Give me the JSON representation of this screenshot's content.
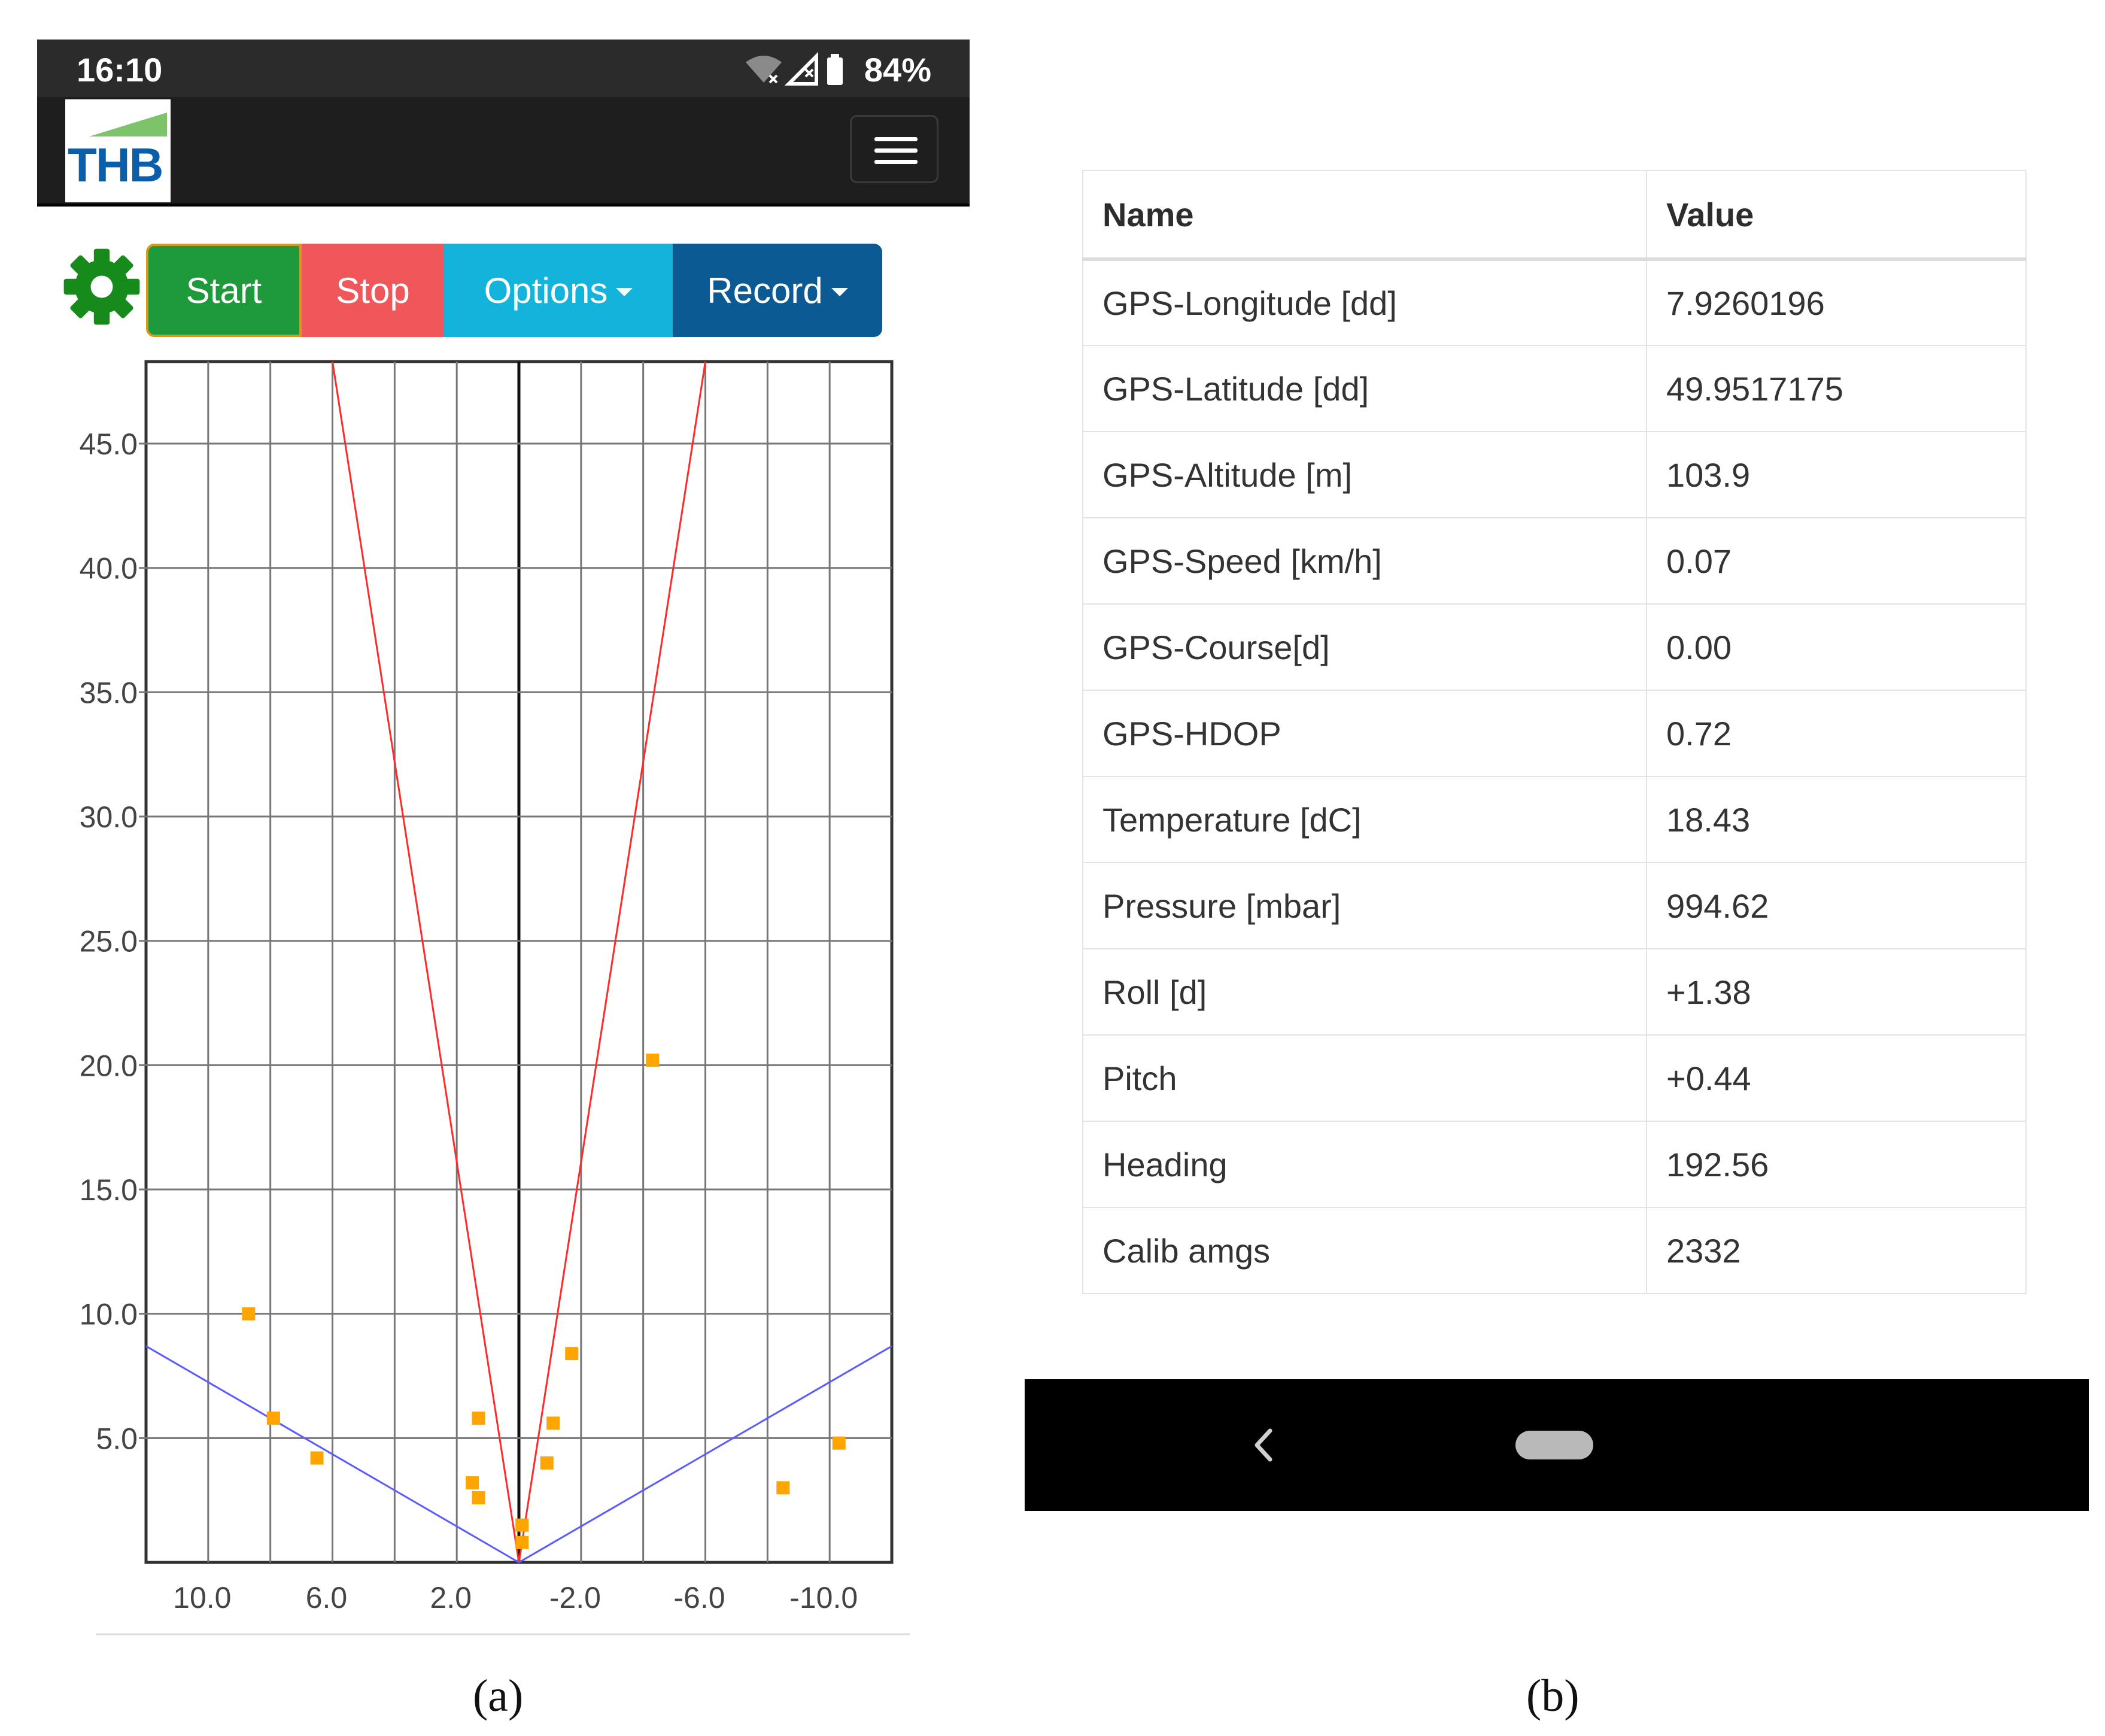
{
  "status_bar": {
    "time": "16:10",
    "battery": "84%",
    "icons": [
      "wifi-off-icon",
      "signal-off-icon",
      "battery-icon"
    ]
  },
  "app": {
    "logo_text": "THB",
    "toolbar": {
      "start": "Start",
      "stop": "Stop",
      "options": "Options",
      "record": "Record"
    }
  },
  "colors": {
    "start": "#1e9a3c",
    "stop": "#f0575a",
    "options": "#13b3dc",
    "record": "#0c5a93",
    "gear": "#178a1c",
    "sector_lines": "#ff2a2a",
    "floor_lines": "#5b5bff",
    "points": "#ffa500"
  },
  "chart_data": {
    "type": "scatter",
    "x_axis": {
      "ticks": [
        "10.0",
        "6.0",
        "2.0",
        "-2.0",
        "-6.0",
        "-10.0"
      ],
      "range": [
        12.0,
        -12.0
      ],
      "reversed": true
    },
    "y_axis": {
      "ticks": [
        "5.0",
        "10.0",
        "15.0",
        "20.0",
        "25.0",
        "30.0",
        "35.0",
        "40.0",
        "45.0"
      ],
      "range": [
        0,
        48.3
      ]
    },
    "grid": true,
    "sector_lines": [
      {
        "from": [
          0,
          0
        ],
        "to": [
          6.0,
          48.3
        ]
      },
      {
        "from": [
          0,
          0
        ],
        "to": [
          -6.0,
          48.3
        ]
      }
    ],
    "floor_lines": [
      {
        "from": [
          0,
          0
        ],
        "to": [
          12.0,
          8.7
        ]
      },
      {
        "from": [
          0,
          0
        ],
        "to": [
          -12.0,
          8.7
        ]
      }
    ],
    "points": [
      {
        "x": 8.7,
        "y": 10.0
      },
      {
        "x": 7.9,
        "y": 5.8
      },
      {
        "x": 6.5,
        "y": 4.2
      },
      {
        "x": 1.3,
        "y": 5.8
      },
      {
        "x": 1.5,
        "y": 3.2
      },
      {
        "x": 1.3,
        "y": 2.6
      },
      {
        "x": -0.1,
        "y": 1.5
      },
      {
        "x": -0.1,
        "y": 0.8
      },
      {
        "x": -1.1,
        "y": 5.6
      },
      {
        "x": -0.9,
        "y": 4.0
      },
      {
        "x": -1.7,
        "y": 8.4
      },
      {
        "x": -4.3,
        "y": 20.2
      },
      {
        "x": -8.5,
        "y": 3.0
      },
      {
        "x": -10.3,
        "y": 4.8
      }
    ]
  },
  "table": {
    "headers": {
      "name": "Name",
      "value": "Value"
    },
    "rows": [
      {
        "name": "GPS-Longitude [dd]",
        "value": "7.9260196"
      },
      {
        "name": "GPS-Latitude [dd]",
        "value": "49.9517175"
      },
      {
        "name": "GPS-Altitude [m]",
        "value": "103.9"
      },
      {
        "name": "GPS-Speed [km/h]",
        "value": "0.07"
      },
      {
        "name": "GPS-Course[d]",
        "value": "0.00"
      },
      {
        "name": "GPS-HDOP",
        "value": "0.72"
      },
      {
        "name": "Temperature [dC]",
        "value": "18.43"
      },
      {
        "name": "Pressure [mbar]",
        "value": "994.62"
      },
      {
        "name": "Roll [d]",
        "value": "+1.38"
      },
      {
        "name": "Pitch",
        "value": "+0.44"
      },
      {
        "name": "Heading",
        "value": "192.56"
      },
      {
        "name": "Calib amgs",
        "value": "2332"
      }
    ]
  },
  "captions": {
    "a": "(a)",
    "b": "(b)"
  }
}
